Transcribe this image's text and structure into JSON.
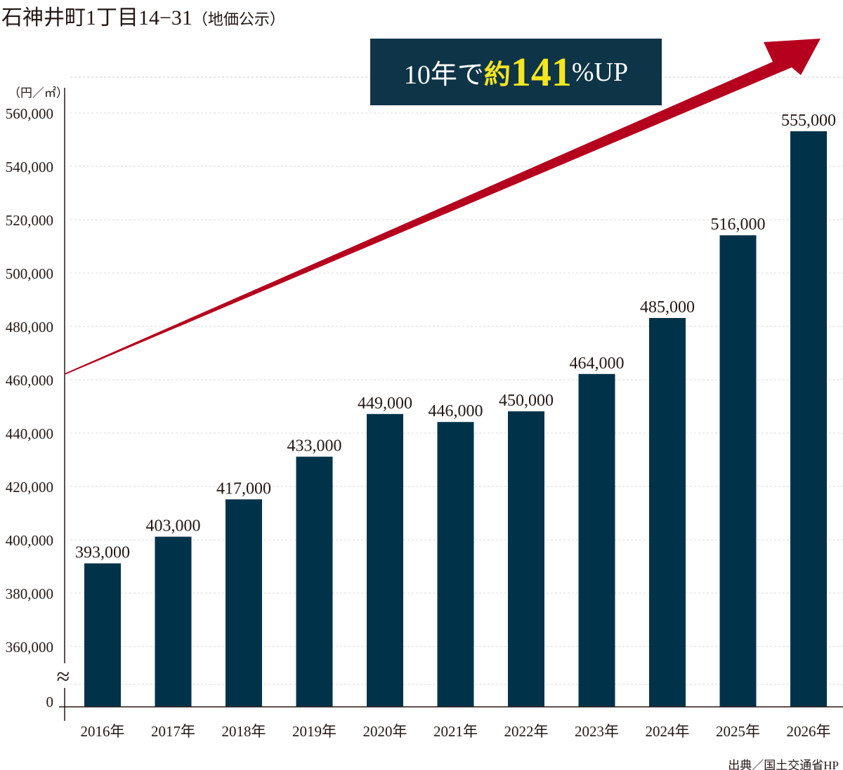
{
  "title": {
    "main": "石神井町1丁目14−31",
    "sub": "（地価公示）"
  },
  "unit": "（円／㎡）",
  "callout": {
    "prefix": "10年で",
    "highlight_word": "約",
    "highlight_number": "141",
    "suffix": "%UP"
  },
  "source": "出典／国土交通省HP",
  "colors": {
    "bar": "#003349",
    "arrow": "#b5001e",
    "callout_bg": "#0e3447",
    "highlight": "#f5e61e"
  },
  "chart_data": {
    "type": "bar",
    "title": "石神井町1丁目14−31（地価公示）",
    "ylabel": "（円／㎡）",
    "xlabel": "",
    "categories": [
      "2016年",
      "2017年",
      "2018年",
      "2019年",
      "2020年",
      "2021年",
      "2022年",
      "2023年",
      "2024年",
      "2025年",
      "2026年"
    ],
    "values": [
      393000,
      403000,
      417000,
      433000,
      449000,
      446000,
      450000,
      464000,
      485000,
      516000,
      555000
    ],
    "value_labels": [
      "393,000",
      "403,000",
      "417,000",
      "433,000",
      "449,000",
      "446,000",
      "450,000",
      "464,000",
      "485,000",
      "516,000",
      "555,000"
    ],
    "yticks": [
      "560,000",
      "540,000",
      "520,000",
      "500,000",
      "480,000",
      "460,000",
      "440,000",
      "420,000",
      "400,000",
      "380,000",
      "360,000"
    ],
    "ytick_values": [
      560000,
      540000,
      520000,
      500000,
      480000,
      460000,
      440000,
      420000,
      400000,
      380000,
      360000
    ],
    "zero_label": "0",
    "axis_break": "≈",
    "ylim": [
      360000,
      560000
    ],
    "grid": true,
    "annotation": "10年で約141%UP"
  }
}
